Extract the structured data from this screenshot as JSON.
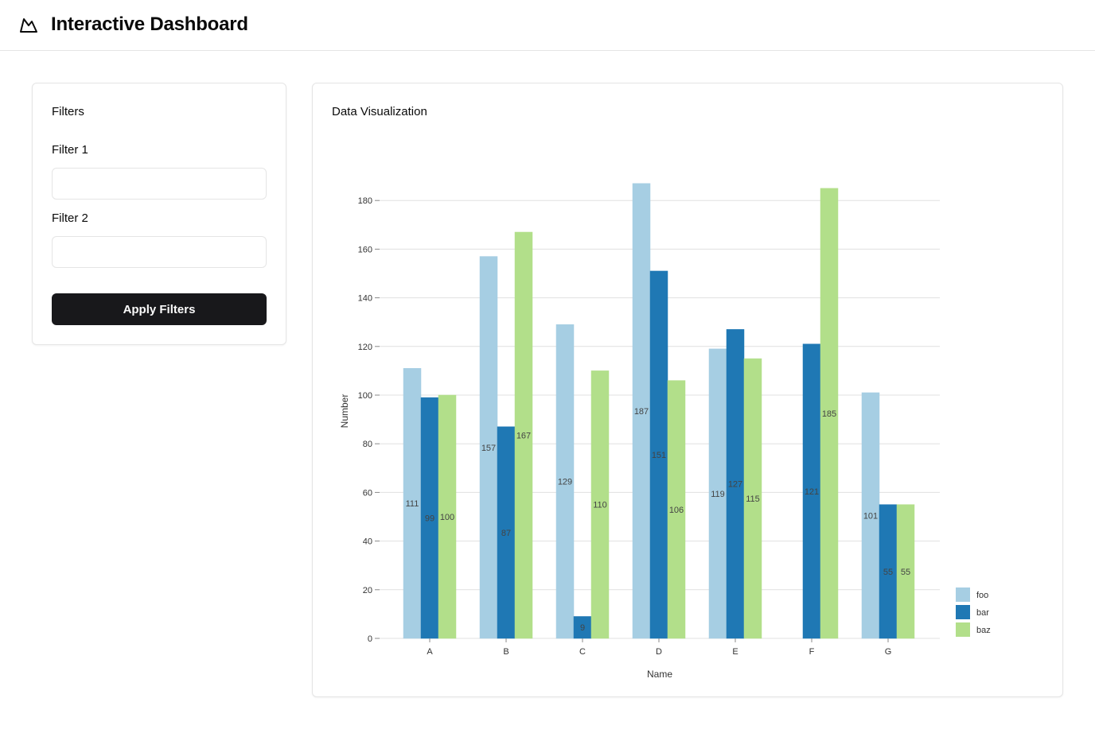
{
  "header": {
    "title": "Interactive Dashboard",
    "logo_icon": "mountain-logo-icon"
  },
  "filters": {
    "title": "Filters",
    "filter1": {
      "label": "Filter 1",
      "value": "",
      "placeholder": ""
    },
    "filter2": {
      "label": "Filter 2",
      "value": "",
      "placeholder": ""
    },
    "apply_label": "Apply Filters"
  },
  "visualization": {
    "title": "Data Visualization"
  },
  "chart_data": {
    "type": "bar",
    "title": "",
    "xlabel": "Name",
    "ylabel": "Number",
    "categories": [
      "A",
      "B",
      "C",
      "D",
      "E",
      "F",
      "G"
    ],
    "ylim": [
      0,
      190
    ],
    "yticks": [
      0,
      20,
      40,
      60,
      80,
      100,
      120,
      140,
      160,
      180
    ],
    "grid": true,
    "legend_position": "bottom-right",
    "series": [
      {
        "name": "foo",
        "color": "#a6cee3",
        "values": [
          111,
          157,
          129,
          187,
          119,
          null,
          101
        ]
      },
      {
        "name": "bar",
        "color": "#1f78b4",
        "values": [
          99,
          87,
          9,
          151,
          127,
          121,
          55
        ]
      },
      {
        "name": "baz",
        "color": "#b2df8a",
        "values": [
          100,
          167,
          110,
          106,
          115,
          185,
          55
        ]
      }
    ]
  }
}
